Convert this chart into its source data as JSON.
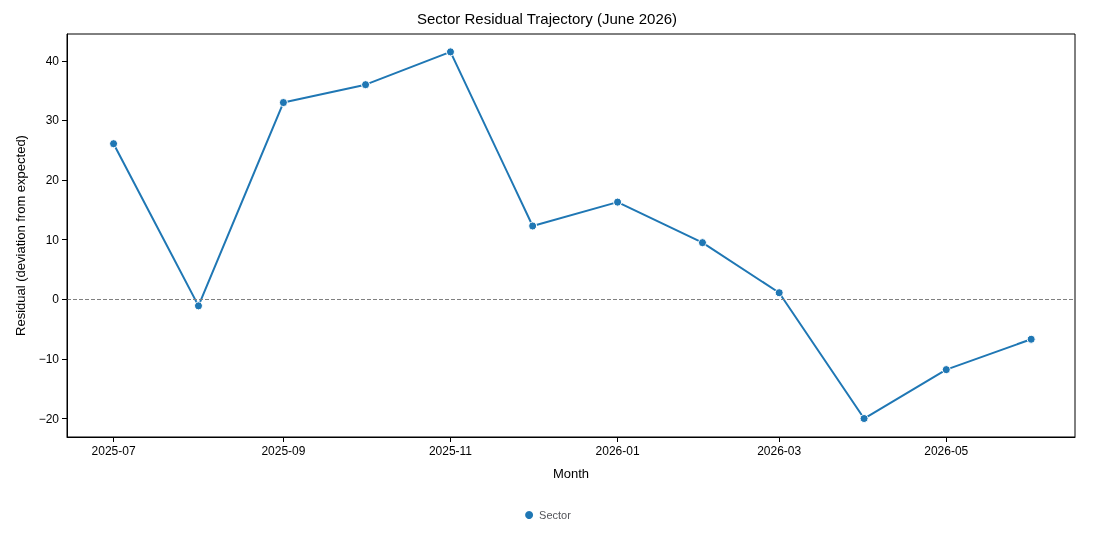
{
  "chart_data": {
    "type": "line",
    "title": "Sector Residual Trajectory (June 2026)",
    "xlabel": "Month",
    "ylabel": "Residual (deviation from expected)",
    "x": [
      "2025-07",
      "2025-08",
      "2025-09",
      "2025-10",
      "2025-11",
      "2025-12",
      "2026-01",
      "2026-02",
      "2026-03",
      "2026-04",
      "2026-05",
      "2026-06"
    ],
    "series": [
      {
        "name": "Sector",
        "color": "#1f77b4",
        "values": [
          26.1,
          -1.1,
          33,
          36,
          41.5,
          12.3,
          16.3,
          9.5,
          1.1,
          -20,
          -11.8,
          -6.7
        ]
      }
    ],
    "xlim": [
      "2025-06-14",
      "2026-06-17"
    ],
    "xticks": [
      "2025-07",
      "2025-09",
      "2025-11",
      "2026-01",
      "2026-03",
      "2026-05"
    ],
    "ylim": [
      -23.1,
      44.5
    ],
    "yticks": [
      -20,
      -10,
      0,
      10,
      20,
      30,
      40
    ],
    "ref_lines": [
      {
        "axis": "y",
        "value": 0,
        "color": "#808080",
        "line_style": "dashed"
      }
    ],
    "grid": false,
    "legend": "bottom",
    "marker": "circle",
    "line_style": "solid"
  }
}
